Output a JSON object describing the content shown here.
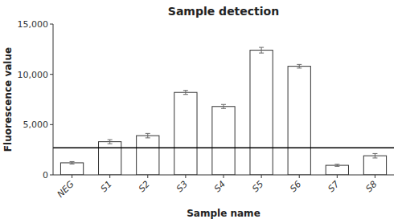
{
  "chart_data": {
    "type": "bar",
    "title": "Sample detection",
    "x_label": "Sample name",
    "y_label": "Fluorescence value",
    "categories": [
      "NEG",
      "S1",
      "S2",
      "S3",
      "S4",
      "S5",
      "S6",
      "S7",
      "S8"
    ],
    "values": [
      1200,
      3300,
      3900,
      8200,
      6800,
      12400,
      10800,
      950,
      1900
    ],
    "errors": [
      120,
      200,
      220,
      200,
      200,
      280,
      180,
      100,
      220
    ],
    "threshold": 2700,
    "color": "#ffffff",
    "ylim": [
      0,
      15000
    ],
    "yticks": [
      0,
      {
        "value": 5000,
        "label": "5,000"
      },
      {
        "value": 10000,
        "label": "10,000"
      },
      {
        "value": 15000,
        "label": "15,000"
      }
    ],
    "grid": false
  }
}
